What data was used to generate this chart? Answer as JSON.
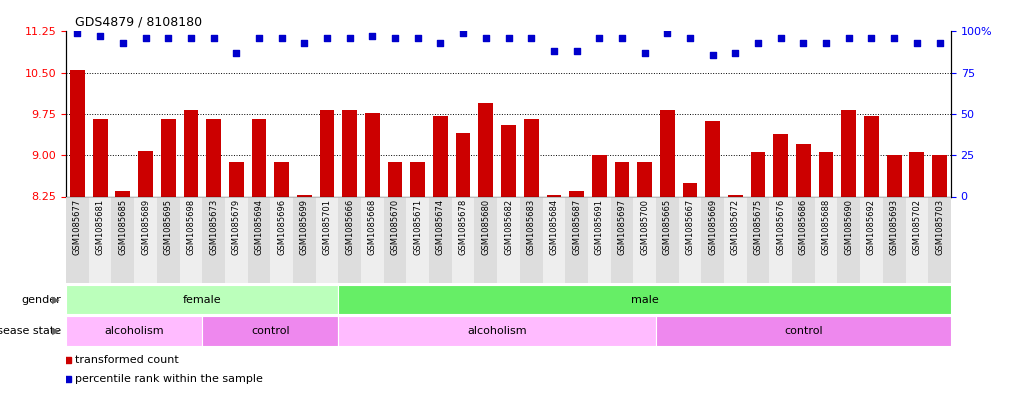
{
  "title": "GDS4879 / 8108180",
  "samples": [
    "GSM1085677",
    "GSM1085681",
    "GSM1085685",
    "GSM1085689",
    "GSM1085695",
    "GSM1085698",
    "GSM1085673",
    "GSM1085679",
    "GSM1085694",
    "GSM1085696",
    "GSM1085699",
    "GSM1085701",
    "GSM1085666",
    "GSM1085668",
    "GSM1085670",
    "GSM1085671",
    "GSM1085674",
    "GSM1085678",
    "GSM1085680",
    "GSM1085682",
    "GSM1085683",
    "GSM1085684",
    "GSM1085687",
    "GSM1085691",
    "GSM1085697",
    "GSM1085700",
    "GSM1085665",
    "GSM1085667",
    "GSM1085669",
    "GSM1085672",
    "GSM1085675",
    "GSM1085676",
    "GSM1085686",
    "GSM1085688",
    "GSM1085690",
    "GSM1085692",
    "GSM1085693",
    "GSM1085702",
    "GSM1085703"
  ],
  "bar_values": [
    10.55,
    9.65,
    8.35,
    9.08,
    9.65,
    9.82,
    9.65,
    8.88,
    9.65,
    8.88,
    8.28,
    9.82,
    9.82,
    9.77,
    8.88,
    8.88,
    9.72,
    9.4,
    9.95,
    9.55,
    9.65,
    8.28,
    8.35,
    9.0,
    8.88,
    8.88,
    9.82,
    8.5,
    9.62,
    8.28,
    9.05,
    9.38,
    9.2,
    9.05,
    9.82,
    9.72,
    9.0,
    9.05,
    9.0
  ],
  "percentile_values": [
    99,
    97,
    93,
    96,
    96,
    96,
    96,
    87,
    96,
    96,
    93,
    96,
    96,
    97,
    96,
    96,
    93,
    99,
    96,
    96,
    96,
    88,
    88,
    96,
    96,
    87,
    99,
    96,
    86,
    87,
    93,
    96,
    93,
    93,
    96,
    96,
    96,
    93,
    93
  ],
  "gender": [
    "female",
    "female",
    "female",
    "female",
    "female",
    "female",
    "female",
    "female",
    "female",
    "female",
    "female",
    "female",
    "male",
    "male",
    "male",
    "male",
    "male",
    "male",
    "male",
    "male",
    "male",
    "male",
    "male",
    "male",
    "male",
    "male",
    "male",
    "male",
    "male",
    "male",
    "male",
    "male",
    "male",
    "male",
    "male",
    "male",
    "male",
    "male",
    "male"
  ],
  "disease_state": [
    "alcoholism",
    "alcoholism",
    "alcoholism",
    "alcoholism",
    "alcoholism",
    "alcoholism",
    "control",
    "control",
    "control",
    "control",
    "control",
    "control",
    "alcoholism",
    "alcoholism",
    "alcoholism",
    "alcoholism",
    "alcoholism",
    "alcoholism",
    "alcoholism",
    "alcoholism",
    "alcoholism",
    "alcoholism",
    "alcoholism",
    "alcoholism",
    "alcoholism",
    "alcoholism",
    "control",
    "control",
    "control",
    "control",
    "control",
    "control",
    "control",
    "control",
    "control",
    "control",
    "control",
    "control",
    "control"
  ],
  "ylim_left": [
    8.25,
    11.25
  ],
  "yticks_left": [
    8.25,
    9.0,
    9.75,
    10.5,
    11.25
  ],
  "ylim_right": [
    0,
    100
  ],
  "yticks_right": [
    0,
    25,
    50,
    75,
    100
  ],
  "bar_color": "#cc0000",
  "dot_color": "#0000cc",
  "gender_female_color": "#bbffbb",
  "gender_male_color": "#66ee66",
  "disease_alcoholism_color": "#ffbbff",
  "disease_control_color": "#ee88ee",
  "tick_bg_even": "#dddddd",
  "tick_bg_odd": "#eeeeee",
  "grid_color": "black",
  "background_color": "#ffffff"
}
